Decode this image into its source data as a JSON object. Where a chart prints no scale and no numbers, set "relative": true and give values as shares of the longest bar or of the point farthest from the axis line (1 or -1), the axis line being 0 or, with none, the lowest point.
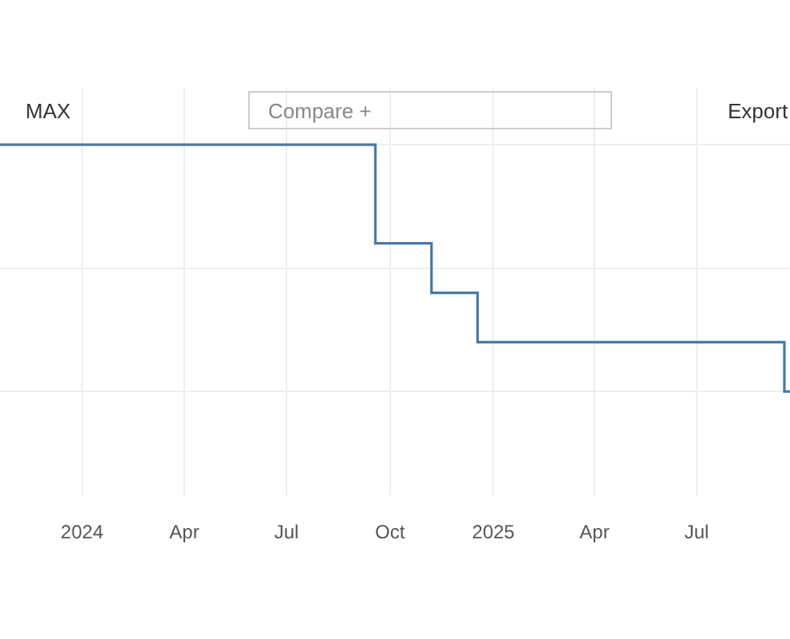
{
  "chart_data": {
    "type": "step",
    "relative": true,
    "x": [
      "2023-10-20",
      "2024-09-18",
      "2024-11-07",
      "2024-12-18",
      "2025-09-17",
      "2025-09-22"
    ],
    "series": [
      {
        "color": "#4a78a8",
        "values": [
          1,
          0.6,
          0.4,
          0.2,
          0,
          0
        ]
      }
    ],
    "xlim": [
      "2023-10-20",
      "2025-09-22"
    ],
    "xticks": [
      {
        "value": "2024-01-01",
        "label": "2024"
      },
      {
        "value": "2024-04-01",
        "label": "Apr"
      },
      {
        "value": "2024-07-01",
        "label": "Jul"
      },
      {
        "value": "2024-10-01",
        "label": "Oct"
      },
      {
        "value": "2025-01-01",
        "label": "2025"
      },
      {
        "value": "2025-04-01",
        "label": "Apr"
      },
      {
        "value": "2025-07-01",
        "label": "Jul"
      }
    ],
    "grid": true,
    "legend": false,
    "marker": "none",
    "line_style": "solid",
    "annotations": [
      "MAX",
      "Compare +",
      "Export"
    ]
  }
}
